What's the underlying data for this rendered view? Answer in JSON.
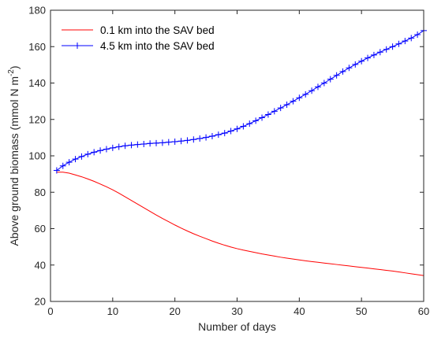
{
  "chart_data": {
    "type": "line",
    "xlabel": "Number of days",
    "ylabel": "Above ground biomass (mmol N m",
    "ylabel_sup": "-2",
    "ylabel_close": ")",
    "xlim": [
      0,
      60
    ],
    "ylim": [
      20,
      180
    ],
    "xticks": [
      0,
      10,
      20,
      30,
      40,
      50,
      60
    ],
    "yticks": [
      20,
      40,
      60,
      80,
      100,
      120,
      140,
      160,
      180
    ],
    "grid": false,
    "legend_position": "top-left",
    "series": [
      {
        "name": "0.1 km into the SAV bed",
        "color": "#ff0000",
        "marker": "none",
        "x": [
          1,
          2,
          3,
          4,
          5,
          6,
          7,
          8,
          9,
          10,
          11,
          12,
          13,
          14,
          15,
          16,
          17,
          18,
          19,
          20,
          21,
          22,
          23,
          24,
          25,
          26,
          27,
          28,
          29,
          30,
          31,
          32,
          33,
          34,
          35,
          36,
          37,
          38,
          39,
          40,
          41,
          42,
          43,
          44,
          45,
          46,
          47,
          48,
          49,
          50,
          51,
          52,
          53,
          54,
          55,
          56,
          57,
          58,
          59,
          60
        ],
        "y": [
          91,
          91,
          90.5,
          89.5,
          88.5,
          87.3,
          86,
          84.5,
          83,
          81.3,
          79.5,
          77.5,
          75.5,
          73.5,
          71.5,
          69.5,
          67.5,
          65.6,
          63.8,
          62,
          60.3,
          58.7,
          57.2,
          55.8,
          54.5,
          53.2,
          52,
          50.9,
          49.9,
          49,
          48.2,
          47.5,
          46.8,
          46.1,
          45.5,
          44.9,
          44.3,
          43.8,
          43.3,
          42.8,
          42.3,
          41.9,
          41.5,
          41.1,
          40.7,
          40.3,
          39.9,
          39.5,
          39.1,
          38.7,
          38.3,
          37.9,
          37.5,
          37.1,
          36.7,
          36.2,
          35.7,
          35.2,
          34.7,
          34.2
        ]
      },
      {
        "name": "4.5 km into the SAV bed",
        "color": "#0000ff",
        "marker": "+",
        "x": [
          1,
          2,
          3,
          4,
          5,
          6,
          7,
          8,
          9,
          10,
          11,
          12,
          13,
          14,
          15,
          16,
          17,
          18,
          19,
          20,
          21,
          22,
          23,
          24,
          25,
          26,
          27,
          28,
          29,
          30,
          31,
          32,
          33,
          34,
          35,
          36,
          37,
          38,
          39,
          40,
          41,
          42,
          43,
          44,
          45,
          46,
          47,
          48,
          49,
          50,
          51,
          52,
          53,
          54,
          55,
          56,
          57,
          58,
          59,
          60
        ],
        "y": [
          92,
          94.5,
          96.5,
          98.2,
          99.6,
          100.9,
          102,
          102.9,
          103.7,
          104.4,
          105,
          105.5,
          105.9,
          106.2,
          106.5,
          106.8,
          107,
          107.2,
          107.5,
          107.8,
          108.1,
          108.5,
          109,
          109.5,
          110.1,
          110.8,
          111.6,
          112.5,
          113.6,
          114.8,
          116.2,
          117.7,
          119.3,
          121,
          122.7,
          124.5,
          126.3,
          128.1,
          130,
          131.9,
          133.8,
          135.8,
          137.9,
          140,
          142.1,
          144.2,
          146.3,
          148.3,
          150.2,
          152,
          153.8,
          155.4,
          157,
          158.5,
          160,
          161.5,
          163.1,
          164.7,
          166.6,
          168.8
        ]
      }
    ]
  }
}
